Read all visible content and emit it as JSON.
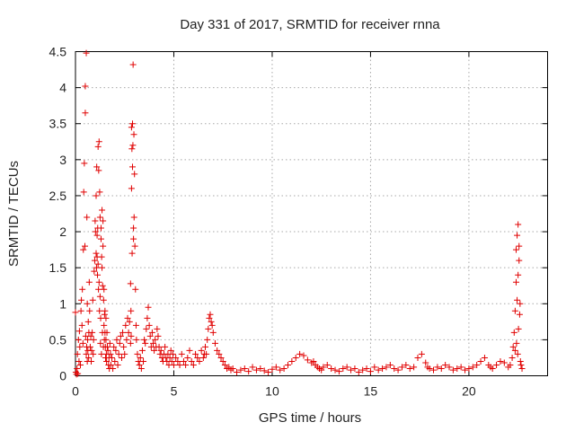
{
  "chart_data": {
    "type": "scatter",
    "title": "Day 331 of 2017, SRMTID for receiver rnna",
    "xlabel": "GPS time / hours",
    "ylabel": "SRMTID / TECUs",
    "xlim": [
      0,
      24
    ],
    "ylim": [
      0,
      4.5
    ],
    "x_ticks": [
      0,
      5,
      10,
      15,
      20
    ],
    "y_ticks": [
      0,
      0.5,
      1,
      1.5,
      2,
      2.5,
      3,
      3.5,
      4,
      4.5
    ],
    "x_tick_labels": [
      "0",
      "5",
      "10",
      "15",
      "20"
    ],
    "y_tick_labels": [
      "0",
      "0.5",
      "1",
      "1.5",
      "2",
      "2.5",
      "3",
      "3.5",
      "4",
      "4.5"
    ],
    "grid": true,
    "marker": "plus",
    "colors": {
      "series": "#e00000",
      "grid": "#a8a8a8",
      "frame": "#000000"
    },
    "series": [
      {
        "name": "SRMTID",
        "x": [
          0.0,
          0.02,
          0.05,
          0.08,
          0.1,
          0.12,
          0.15,
          0.18,
          0.2,
          0.22,
          0.25,
          0.28,
          0.3,
          0.33,
          0.35,
          0.38,
          0.4,
          0.42,
          0.45,
          0.48,
          0.5,
          0.5,
          0.52,
          0.55,
          0.55,
          0.57,
          0.58,
          0.6,
          0.6,
          0.62,
          0.63,
          0.65,
          0.67,
          0.68,
          0.7,
          0.72,
          0.75,
          0.78,
          0.8,
          0.82,
          0.85,
          0.88,
          0.9,
          0.92,
          0.95,
          0.98,
          1.0,
          1.02,
          1.05,
          1.05,
          1.07,
          1.08,
          1.1,
          1.1,
          1.12,
          1.13,
          1.15,
          1.15,
          1.17,
          1.18,
          1.2,
          1.2,
          1.22,
          1.23,
          1.25,
          1.25,
          1.27,
          1.28,
          1.3,
          1.3,
          1.32,
          1.33,
          1.35,
          1.35,
          1.37,
          1.38,
          1.4,
          1.4,
          1.42,
          1.43,
          1.45,
          1.45,
          1.47,
          1.48,
          1.5,
          1.5,
          1.52,
          1.53,
          1.55,
          1.55,
          1.57,
          1.58,
          1.6,
          1.62,
          1.65,
          1.68,
          1.7,
          1.72,
          1.75,
          1.78,
          1.8,
          1.85,
          1.9,
          1.95,
          2.0,
          2.05,
          2.1,
          2.15,
          2.2,
          2.25,
          2.3,
          2.35,
          2.4,
          2.45,
          2.5,
          2.55,
          2.6,
          2.65,
          2.7,
          2.75,
          2.8,
          2.8,
          2.82,
          2.83,
          2.85,
          2.85,
          2.87,
          2.88,
          2.9,
          2.9,
          2.92,
          2.93,
          2.95,
          2.95,
          2.97,
          2.98,
          3.0,
          3.02,
          3.05,
          3.08,
          3.1,
          3.15,
          3.2,
          3.25,
          3.3,
          3.35,
          3.4,
          3.45,
          3.5,
          3.55,
          3.6,
          3.65,
          3.7,
          3.75,
          3.8,
          3.85,
          3.9,
          3.95,
          4.0,
          4.05,
          4.1,
          4.15,
          4.2,
          4.25,
          4.3,
          4.35,
          4.4,
          4.45,
          4.5,
          4.55,
          4.6,
          4.65,
          4.7,
          4.75,
          4.8,
          4.85,
          4.9,
          4.95,
          5.0,
          5.1,
          5.2,
          5.3,
          5.4,
          5.5,
          5.6,
          5.7,
          5.8,
          5.9,
          6.0,
          6.1,
          6.2,
          6.3,
          6.4,
          6.5,
          6.55,
          6.6,
          6.65,
          6.7,
          6.75,
          6.8,
          6.85,
          6.9,
          6.95,
          7.0,
          7.1,
          7.2,
          7.3,
          7.4,
          7.5,
          7.6,
          7.7,
          7.8,
          7.9,
          8.0,
          8.2,
          8.4,
          8.6,
          8.8,
          9.0,
          9.2,
          9.4,
          9.6,
          9.8,
          10.0,
          10.2,
          10.4,
          10.6,
          10.8,
          11.0,
          11.2,
          11.4,
          11.6,
          11.8,
          12.0,
          12.1,
          12.2,
          12.3,
          12.4,
          12.5,
          12.6,
          12.8,
          13.0,
          13.2,
          13.4,
          13.6,
          13.8,
          14.0,
          14.2,
          14.4,
          14.6,
          14.8,
          15.0,
          15.2,
          15.4,
          15.6,
          15.8,
          16.0,
          16.2,
          16.4,
          16.6,
          16.8,
          17.0,
          17.2,
          17.4,
          17.6,
          17.8,
          17.9,
          18.0,
          18.2,
          18.4,
          18.6,
          18.8,
          19.0,
          19.2,
          19.4,
          19.6,
          19.8,
          20.0,
          20.2,
          20.4,
          20.6,
          20.8,
          21.0,
          21.1,
          21.2,
          21.4,
          21.6,
          21.8,
          22.0,
          22.1,
          22.2,
          22.25,
          22.3,
          22.35,
          22.35,
          22.4,
          22.4,
          22.42,
          22.45,
          22.45,
          22.48,
          22.5,
          22.5,
          22.52,
          22.55,
          22.55,
          22.58,
          22.6,
          22.62,
          22.65,
          22.7
        ],
        "y": [
          0.88,
          0.05,
          0.02,
          0.1,
          0.3,
          0.03,
          0.5,
          0.2,
          0.62,
          0.4,
          0.15,
          0.9,
          1.05,
          0.7,
          1.2,
          0.45,
          1.75,
          2.55,
          2.95,
          1.8,
          3.65,
          4.02,
          0.55,
          4.48,
          0.3,
          0.4,
          2.2,
          1.0,
          0.2,
          0.5,
          0.35,
          0.75,
          0.25,
          0.6,
          1.3,
          0.9,
          0.4,
          0.55,
          0.2,
          0.35,
          0.6,
          1.05,
          0.3,
          0.5,
          1.45,
          1.6,
          2.15,
          2.0,
          1.7,
          2.5,
          1.5,
          2.9,
          1.95,
          1.65,
          1.4,
          2.05,
          1.55,
          3.18,
          1.2,
          2.85,
          3.25,
          1.3,
          0.9,
          2.55,
          2.2,
          1.1,
          0.45,
          0.8,
          1.9,
          2.05,
          0.3,
          1.65,
          2.3,
          1.5,
          0.6,
          1.25,
          2.15,
          1.8,
          0.4,
          1.05,
          1.2,
          0.7,
          0.5,
          0.85,
          0.9,
          0.6,
          0.4,
          0.25,
          0.8,
          0.5,
          0.3,
          0.2,
          0.6,
          0.4,
          0.35,
          0.15,
          0.25,
          0.1,
          0.45,
          0.3,
          0.15,
          0.25,
          0.1,
          0.4,
          0.2,
          0.35,
          0.5,
          0.15,
          0.3,
          0.45,
          0.55,
          0.25,
          0.6,
          0.4,
          0.3,
          0.7,
          0.5,
          0.8,
          0.6,
          0.75,
          0.45,
          1.28,
          0.9,
          0.55,
          3.45,
          2.6,
          3.15,
          1.7,
          3.5,
          2.9,
          3.2,
          4.32,
          1.9,
          2.05,
          3.35,
          2.2,
          2.8,
          1.8,
          1.2,
          0.7,
          0.5,
          0.3,
          0.2,
          0.15,
          0.25,
          0.1,
          0.35,
          0.2,
          0.5,
          0.45,
          0.65,
          0.8,
          0.95,
          0.7,
          0.55,
          0.4,
          0.6,
          0.45,
          0.35,
          0.5,
          0.4,
          0.65,
          0.55,
          0.4,
          0.3,
          0.35,
          0.25,
          0.2,
          0.3,
          0.4,
          0.25,
          0.2,
          0.3,
          0.15,
          0.25,
          0.35,
          0.2,
          0.3,
          0.15,
          0.25,
          0.2,
          0.15,
          0.3,
          0.2,
          0.15,
          0.25,
          0.35,
          0.2,
          0.15,
          0.3,
          0.25,
          0.2,
          0.35,
          0.25,
          0.3,
          0.4,
          0.3,
          0.5,
          0.65,
          0.8,
          0.85,
          0.75,
          0.7,
          0.6,
          0.45,
          0.35,
          0.3,
          0.25,
          0.2,
          0.15,
          0.1,
          0.12,
          0.08,
          0.1,
          0.05,
          0.08,
          0.1,
          0.06,
          0.12,
          0.08,
          0.1,
          0.07,
          0.05,
          0.09,
          0.12,
          0.08,
          0.1,
          0.15,
          0.2,
          0.25,
          0.3,
          0.28,
          0.22,
          0.18,
          0.2,
          0.15,
          0.12,
          0.1,
          0.08,
          0.12,
          0.15,
          0.1,
          0.08,
          0.06,
          0.1,
          0.12,
          0.08,
          0.1,
          0.05,
          0.08,
          0.1,
          0.06,
          0.12,
          0.08,
          0.1,
          0.12,
          0.15,
          0.1,
          0.08,
          0.12,
          0.15,
          0.1,
          0.12,
          0.25,
          0.3,
          0.18,
          0.12,
          0.1,
          0.08,
          0.12,
          0.1,
          0.15,
          0.12,
          0.08,
          0.1,
          0.12,
          0.08,
          0.1,
          0.12,
          0.15,
          0.2,
          0.25,
          0.15,
          0.12,
          0.1,
          0.15,
          0.2,
          0.18,
          0.12,
          0.15,
          0.25,
          0.4,
          0.6,
          0.35,
          0.9,
          1.3,
          1.75,
          0.45,
          1.95,
          1.05,
          0.3,
          1.4,
          2.1,
          0.65,
          1.6,
          1.8,
          0.85,
          1.0,
          0.2,
          0.15,
          0.1
        ]
      }
    ]
  }
}
